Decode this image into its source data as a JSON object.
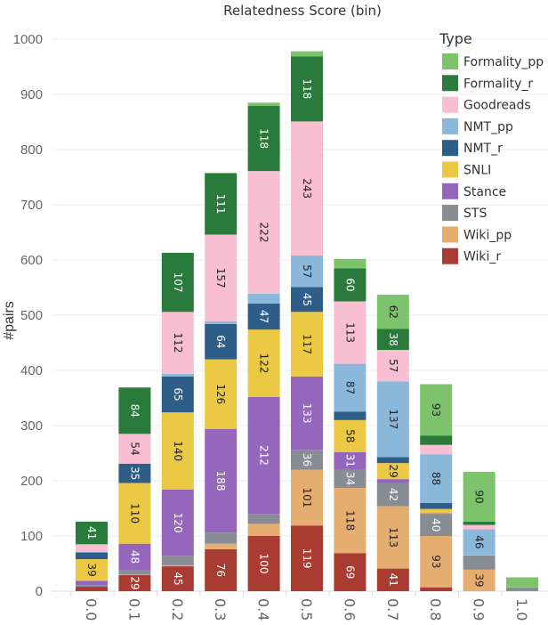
{
  "chart_data": {
    "type": "bar",
    "stacked": true,
    "title": "Relatedness Score (bin)",
    "xlabel": "",
    "ylabel": "#pairs",
    "ylim": [
      0,
      1000
    ],
    "yticks": [
      0,
      100,
      200,
      300,
      400,
      500,
      600,
      700,
      800,
      900,
      1000
    ],
    "grid": true,
    "legend": {
      "title": "Type",
      "placement": "top-right"
    },
    "categories": [
      "0.0",
      "0.1",
      "0.2",
      "0.3",
      "0.4",
      "0.5",
      "0.6",
      "0.7",
      "0.8",
      "0.9",
      "1.0"
    ],
    "series": [
      {
        "name": "Wiki_r",
        "color": "#a83b32",
        "text_color": "#ffffff",
        "values": [
          8,
          29,
          45,
          76,
          100,
          119,
          69,
          41,
          7,
          0,
          0
        ]
      },
      {
        "name": "Wiki_pp",
        "color": "#e6ad70",
        "text_color": "#222222",
        "values": [
          0,
          1,
          2,
          10,
          22,
          101,
          118,
          113,
          93,
          39,
          0
        ]
      },
      {
        "name": "STS",
        "color": "#878d92",
        "text_color": "#ffffff",
        "values": [
          3,
          8,
          17,
          20,
          18,
          36,
          34,
          42,
          40,
          26,
          7
        ]
      },
      {
        "name": "Stance",
        "color": "#9467bd",
        "text_color": "#ffffff",
        "values": [
          8,
          48,
          120,
          188,
          212,
          133,
          31,
          7,
          1,
          0,
          0
        ]
      },
      {
        "name": "SNLI",
        "color": "#ebc945",
        "text_color": "#222222",
        "values": [
          39,
          110,
          140,
          126,
          122,
          117,
          58,
          29,
          8,
          1,
          0
        ]
      },
      {
        "name": "NMT_r",
        "color": "#2f5d8a",
        "text_color": "#ffffff",
        "values": [
          12,
          35,
          65,
          64,
          47,
          45,
          15,
          11,
          11,
          0,
          0
        ]
      },
      {
        "name": "NMT_pp",
        "color": "#8ab8da",
        "text_color": "#222222",
        "values": [
          1,
          0,
          5,
          5,
          18,
          57,
          87,
          137,
          88,
          46,
          1
        ]
      },
      {
        "name": "Goodreads",
        "color": "#f8bfd3",
        "text_color": "#222222",
        "values": [
          14,
          54,
          112,
          157,
          222,
          243,
          113,
          57,
          17,
          8,
          0
        ]
      },
      {
        "name": "Formality_r",
        "color": "#2a7a3b",
        "text_color": "#ffffff",
        "values": [
          41,
          84,
          107,
          111,
          118,
          118,
          60,
          38,
          17,
          6,
          0
        ]
      },
      {
        "name": "Formality_pp",
        "color": "#7dc36b",
        "text_color": "#222222",
        "values": [
          0,
          0,
          0,
          1,
          6,
          9,
          17,
          62,
          93,
          90,
          17
        ]
      }
    ],
    "label_threshold": 28
  }
}
